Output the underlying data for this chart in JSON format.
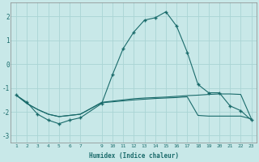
{
  "xlabel": "Humidex (Indice chaleur)",
  "bg_color": "#c8e8e8",
  "grid_color": "#aad4d4",
  "line_color": "#1a6b6b",
  "xlim": [
    0.5,
    23.5
  ],
  "ylim": [
    -3.3,
    2.6
  ],
  "yticks": [
    -3,
    -2,
    -1,
    0,
    1,
    2
  ],
  "xticks": [
    1,
    2,
    3,
    4,
    5,
    6,
    7,
    9,
    10,
    11,
    12,
    13,
    14,
    15,
    16,
    17,
    18,
    19,
    20,
    21,
    22,
    23
  ],
  "line_peak_x": [
    1,
    2,
    3,
    4,
    5,
    6,
    7,
    9,
    10,
    11,
    12,
    13,
    14,
    15,
    16,
    17,
    18,
    19,
    20,
    21,
    22,
    23
  ],
  "line_peak_y": [
    -1.3,
    -1.6,
    -2.1,
    -2.35,
    -2.5,
    -2.35,
    -2.25,
    -1.65,
    -0.45,
    0.65,
    1.35,
    1.85,
    1.95,
    2.2,
    1.6,
    0.5,
    -0.85,
    -1.2,
    -1.2,
    -1.75,
    -1.95,
    -2.35
  ],
  "line_flat1_x": [
    1,
    2,
    3,
    4,
    5,
    6,
    7,
    9,
    10,
    11,
    12,
    13,
    14,
    15,
    16,
    17,
    18,
    19,
    20,
    21,
    22,
    23
  ],
  "line_flat1_y": [
    -1.3,
    -1.65,
    -1.9,
    -2.1,
    -2.2,
    -2.15,
    -2.1,
    -1.6,
    -1.55,
    -1.5,
    -1.45,
    -1.42,
    -1.4,
    -1.38,
    -1.35,
    -1.32,
    -1.3,
    -1.27,
    -1.25,
    -1.25,
    -1.27,
    -2.3
  ],
  "line_flat2_x": [
    1,
    2,
    3,
    4,
    5,
    6,
    7,
    9,
    10,
    11,
    12,
    13,
    14,
    15,
    16,
    17,
    18,
    19,
    20,
    21,
    22,
    23
  ],
  "line_flat2_y": [
    -1.3,
    -1.65,
    -1.9,
    -2.1,
    -2.2,
    -2.15,
    -2.1,
    -1.62,
    -1.58,
    -1.54,
    -1.5,
    -1.47,
    -1.44,
    -1.42,
    -1.4,
    -1.37,
    -2.15,
    -2.18,
    -2.18,
    -2.18,
    -2.18,
    -2.3
  ]
}
